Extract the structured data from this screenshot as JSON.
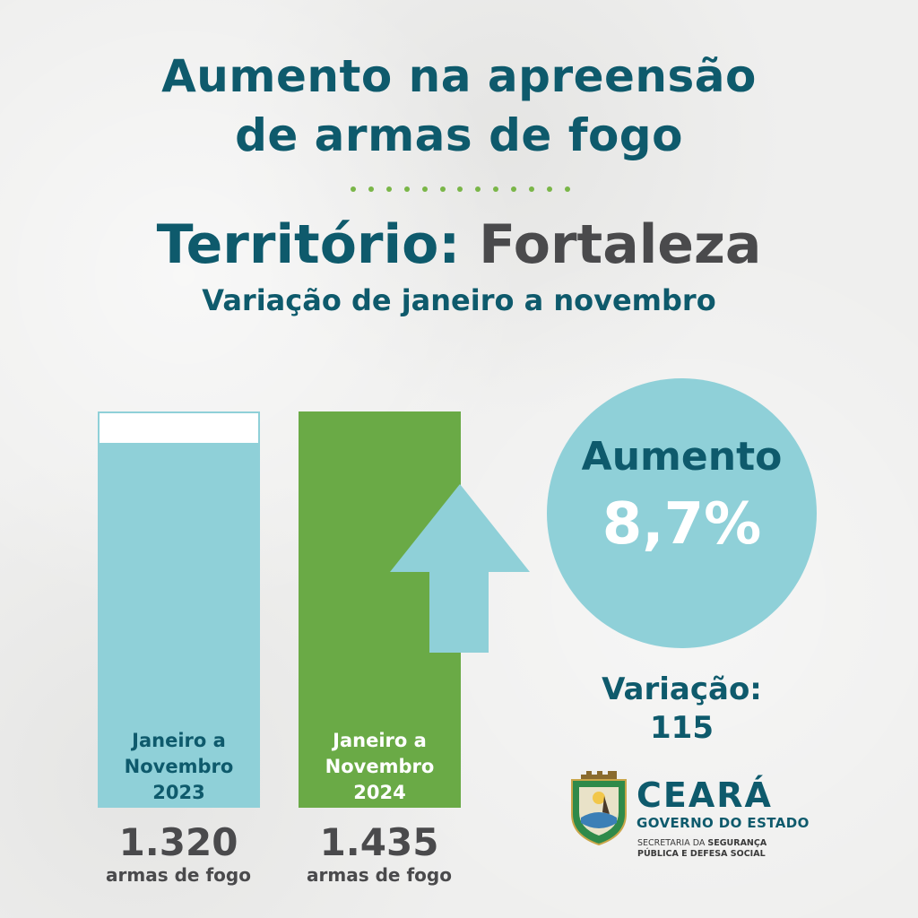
{
  "colors": {
    "teal": "#0e5a6c",
    "dark_gray": "#4a4a4c",
    "light_blue": "#8fd0d8",
    "green": "#6aaa46",
    "dots_green": "#7ab648"
  },
  "header": {
    "title_line1": "Aumento na apreensão",
    "title_line2": "de armas de fogo",
    "territory_label": "Território:",
    "territory_name": "Fortaleza",
    "subtitle": "Variação de janeiro a novembro"
  },
  "chart_data": {
    "type": "bar",
    "categories": [
      "Janeiro a Novembro 2023",
      "Janeiro a Novembro 2024"
    ],
    "values": [
      1320,
      1435
    ],
    "ylim": [
      0,
      1435
    ],
    "bars": [
      {
        "label_lines": [
          "Janeiro a",
          "Novembro",
          "2023"
        ],
        "value_text": "1.320",
        "unit": "armas de fogo",
        "value": 1320,
        "color": "#8fd0d8"
      },
      {
        "label_lines": [
          "Janeiro a",
          "Novembro",
          "2024"
        ],
        "value_text": "1.435",
        "unit": "armas de fogo",
        "value": 1435,
        "color": "#6aaa46"
      }
    ]
  },
  "highlight": {
    "label": "Aumento",
    "value": "8,7%",
    "variation_label": "Variação:",
    "variation_value": "115",
    "arrow_icon": "arrow-up-icon"
  },
  "logo": {
    "title": "CEARÁ",
    "subtitle": "GOVERNO DO ESTADO",
    "dept_line1_prefix": "SECRETARIA DA ",
    "dept_line1_bold": "SEGURANÇA",
    "dept_line2": "PÚBLICA E DEFESA SOCIAL",
    "crest_icon": "ceara-crest-icon"
  }
}
